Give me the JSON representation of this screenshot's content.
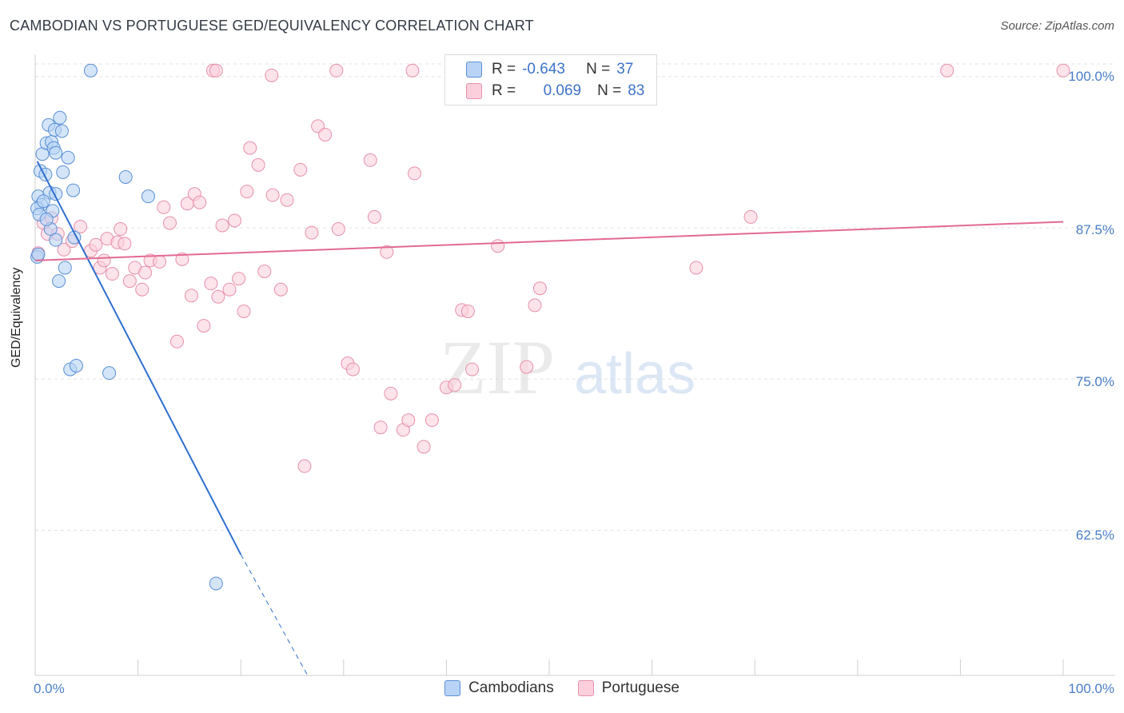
{
  "header": {
    "title": "CAMBODIAN VS PORTUGUESE GED/EQUIVALENCY CORRELATION CHART",
    "source": "Source: ZipAtlas.com"
  },
  "legend_top": {
    "rows": [
      {
        "r_label": "R =",
        "r_value": "-0.643",
        "n_label": "N =",
        "n_value": "37"
      },
      {
        "r_label": "R =",
        "r_value": "0.069",
        "n_label": "N =",
        "n_value": "83"
      }
    ]
  },
  "watermark": {
    "zip": "ZIP",
    "atlas": "atlas"
  },
  "colors": {
    "cambodians_fill": "#b8d3f5",
    "cambodians_stroke": "#5a8fd6",
    "cambodians_line": "#2f6fd0",
    "portuguese_fill": "#fbd0dc",
    "portuguese_stroke": "#e890ab",
    "portuguese_line": "#e26a93",
    "tick_label": "#4a7ec9",
    "grid": "#e3e3e3"
  },
  "chart_data": {
    "type": "scatter",
    "title": "CAMBODIAN VS PORTUGUESE GED/EQUIVALENCY CORRELATION CHART",
    "xlabel": "",
    "ylabel": "GED/Equivalency",
    "xlim": [
      0,
      100
    ],
    "ylim": [
      50.5,
      102.5
    ],
    "x_tick_labels": [
      "0.0%",
      "100.0%"
    ],
    "y_ticks": [
      62.5,
      75.0,
      87.5,
      100.0
    ],
    "y_tick_labels": [
      "62.5%",
      "75.0%",
      "87.5%",
      "100.0%"
    ],
    "grid": "horizontal dashed",
    "legend": "bottom-center",
    "series": [
      {
        "name": "Cambodians",
        "r": -0.643,
        "n": 37,
        "trend": {
          "x0": 0.2,
          "y0": 93.0,
          "x1": 20.0,
          "y1": 60.5,
          "dash_to_x": 26.5,
          "dash_to_y": 50.5
        },
        "points": [
          [
            5.4,
            100.5
          ],
          [
            0.5,
            92.2
          ],
          [
            0.7,
            93.6
          ],
          [
            1.1,
            94.5
          ],
          [
            1.3,
            96.0
          ],
          [
            1.6,
            94.6
          ],
          [
            1.9,
            95.6
          ],
          [
            2.4,
            96.6
          ],
          [
            2.6,
            95.5
          ],
          [
            1.8,
            94.1
          ],
          [
            2.0,
            93.7
          ],
          [
            3.2,
            93.3
          ],
          [
            1.0,
            91.9
          ],
          [
            2.7,
            92.1
          ],
          [
            0.3,
            90.1
          ],
          [
            0.6,
            89.4
          ],
          [
            1.4,
            90.4
          ],
          [
            2.0,
            90.3
          ],
          [
            3.7,
            90.6
          ],
          [
            8.8,
            91.7
          ],
          [
            11.0,
            90.1
          ],
          [
            0.2,
            89.1
          ],
          [
            0.8,
            89.7
          ],
          [
            1.7,
            88.9
          ],
          [
            0.4,
            88.6
          ],
          [
            1.5,
            87.4
          ],
          [
            2.0,
            86.5
          ],
          [
            3.8,
            86.7
          ],
          [
            0.2,
            85.1
          ],
          [
            2.9,
            84.2
          ],
          [
            2.3,
            83.1
          ],
          [
            3.4,
            75.8
          ],
          [
            4.0,
            76.1
          ],
          [
            7.2,
            75.5
          ],
          [
            17.6,
            58.1
          ],
          [
            1.1,
            88.2
          ],
          [
            0.3,
            85.3
          ]
        ]
      },
      {
        "name": "Portuguese",
        "r": 0.069,
        "n": 83,
        "trend": {
          "x0": 0,
          "y0": 84.8,
          "x1": 100,
          "y1": 88.0
        },
        "points": [
          [
            17.3,
            100.5
          ],
          [
            17.6,
            100.5
          ],
          [
            23.0,
            100.1
          ],
          [
            29.3,
            100.5
          ],
          [
            36.7,
            100.5
          ],
          [
            51.0,
            100.5
          ],
          [
            88.7,
            100.5
          ],
          [
            100.0,
            100.5
          ],
          [
            0.3,
            85.4
          ],
          [
            0.8,
            87.9
          ],
          [
            1.2,
            87.0
          ],
          [
            1.6,
            88.3
          ],
          [
            2.2,
            87.0
          ],
          [
            2.8,
            85.7
          ],
          [
            3.6,
            86.4
          ],
          [
            4.4,
            87.6
          ],
          [
            5.4,
            85.6
          ],
          [
            5.9,
            86.1
          ],
          [
            6.3,
            84.2
          ],
          [
            6.7,
            84.8
          ],
          [
            7.0,
            86.6
          ],
          [
            7.5,
            83.7
          ],
          [
            8.0,
            86.3
          ],
          [
            8.3,
            87.4
          ],
          [
            8.7,
            86.2
          ],
          [
            9.2,
            83.1
          ],
          [
            9.7,
            84.2
          ],
          [
            10.4,
            82.4
          ],
          [
            10.7,
            83.8
          ],
          [
            11.2,
            84.8
          ],
          [
            12.1,
            84.7
          ],
          [
            12.5,
            89.2
          ],
          [
            13.1,
            87.9
          ],
          [
            13.8,
            78.1
          ],
          [
            14.3,
            84.9
          ],
          [
            14.8,
            89.5
          ],
          [
            15.2,
            81.9
          ],
          [
            15.5,
            90.3
          ],
          [
            16.0,
            89.6
          ],
          [
            16.4,
            79.4
          ],
          [
            17.1,
            82.9
          ],
          [
            17.8,
            81.8
          ],
          [
            18.2,
            87.7
          ],
          [
            18.9,
            82.4
          ],
          [
            19.4,
            88.1
          ],
          [
            19.8,
            83.3
          ],
          [
            20.3,
            80.6
          ],
          [
            20.6,
            90.5
          ],
          [
            20.9,
            94.1
          ],
          [
            21.7,
            92.7
          ],
          [
            22.3,
            83.9
          ],
          [
            23.1,
            90.2
          ],
          [
            23.9,
            82.4
          ],
          [
            24.5,
            89.8
          ],
          [
            25.8,
            92.3
          ],
          [
            26.2,
            67.8
          ],
          [
            26.9,
            87.1
          ],
          [
            27.5,
            95.9
          ],
          [
            28.2,
            95.2
          ],
          [
            29.5,
            87.4
          ],
          [
            30.4,
            76.3
          ],
          [
            30.9,
            75.8
          ],
          [
            32.6,
            93.1
          ],
          [
            33.0,
            88.4
          ],
          [
            33.6,
            71.0
          ],
          [
            34.2,
            85.5
          ],
          [
            34.6,
            73.8
          ],
          [
            35.8,
            70.8
          ],
          [
            36.3,
            71.6
          ],
          [
            36.9,
            92.0
          ],
          [
            37.8,
            69.4
          ],
          [
            38.6,
            71.6
          ],
          [
            40.0,
            74.3
          ],
          [
            40.8,
            74.5
          ],
          [
            41.5,
            80.7
          ],
          [
            42.1,
            80.6
          ],
          [
            42.5,
            75.8
          ],
          [
            45.0,
            86.0
          ],
          [
            47.8,
            76.0
          ],
          [
            48.6,
            81.1
          ],
          [
            49.1,
            82.5
          ],
          [
            64.3,
            84.2
          ],
          [
            69.6,
            88.4
          ]
        ]
      }
    ]
  },
  "bottom_legend": {
    "items": [
      {
        "label": "Cambodians"
      },
      {
        "label": "Portuguese"
      }
    ]
  }
}
